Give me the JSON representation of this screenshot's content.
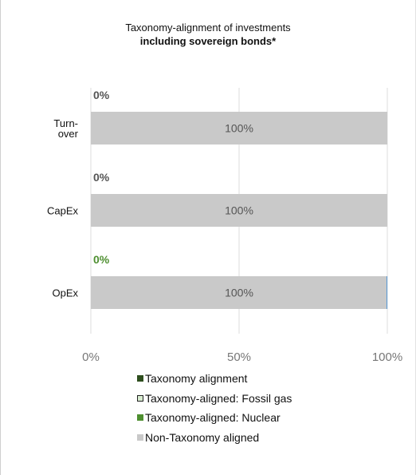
{
  "chart_data": {
    "type": "bar",
    "orientation": "horizontal",
    "stacked": true,
    "title": "Taxonomy-alignment of investments",
    "subtitle": "including sovereign bonds*",
    "categories": [
      "Turn-\nover",
      "CapEx",
      "OpEx"
    ],
    "series": [
      {
        "name": "Taxonomy alignment",
        "values": [
          0,
          0,
          0
        ],
        "color": "#2e4e1e"
      },
      {
        "name": "Taxonomy-aligned: Fossil gas",
        "values": [
          0,
          0,
          0
        ],
        "color": "#d8ecd0",
        "border": "#222222"
      },
      {
        "name": "Taxonomy-aligned: Nuclear",
        "values": [
          0,
          0,
          0
        ],
        "color": "#4e8f30"
      },
      {
        "name": "Non-Taxonomy aligned",
        "values": [
          100,
          100,
          100
        ],
        "color": "#c9c9c9"
      }
    ],
    "bar_labels": [
      "100%",
      "100%",
      "100%"
    ],
    "aligned_labels": [
      "0%",
      "0%",
      "0%"
    ],
    "aligned_label_colors": [
      "#555555",
      "#555555",
      "#4e8f30"
    ],
    "xlim": [
      0,
      100
    ],
    "xticks": [
      0,
      50,
      100
    ],
    "xtick_labels": [
      "0%",
      "50%",
      "100%"
    ],
    "grid": true,
    "legend_position": "bottom"
  }
}
